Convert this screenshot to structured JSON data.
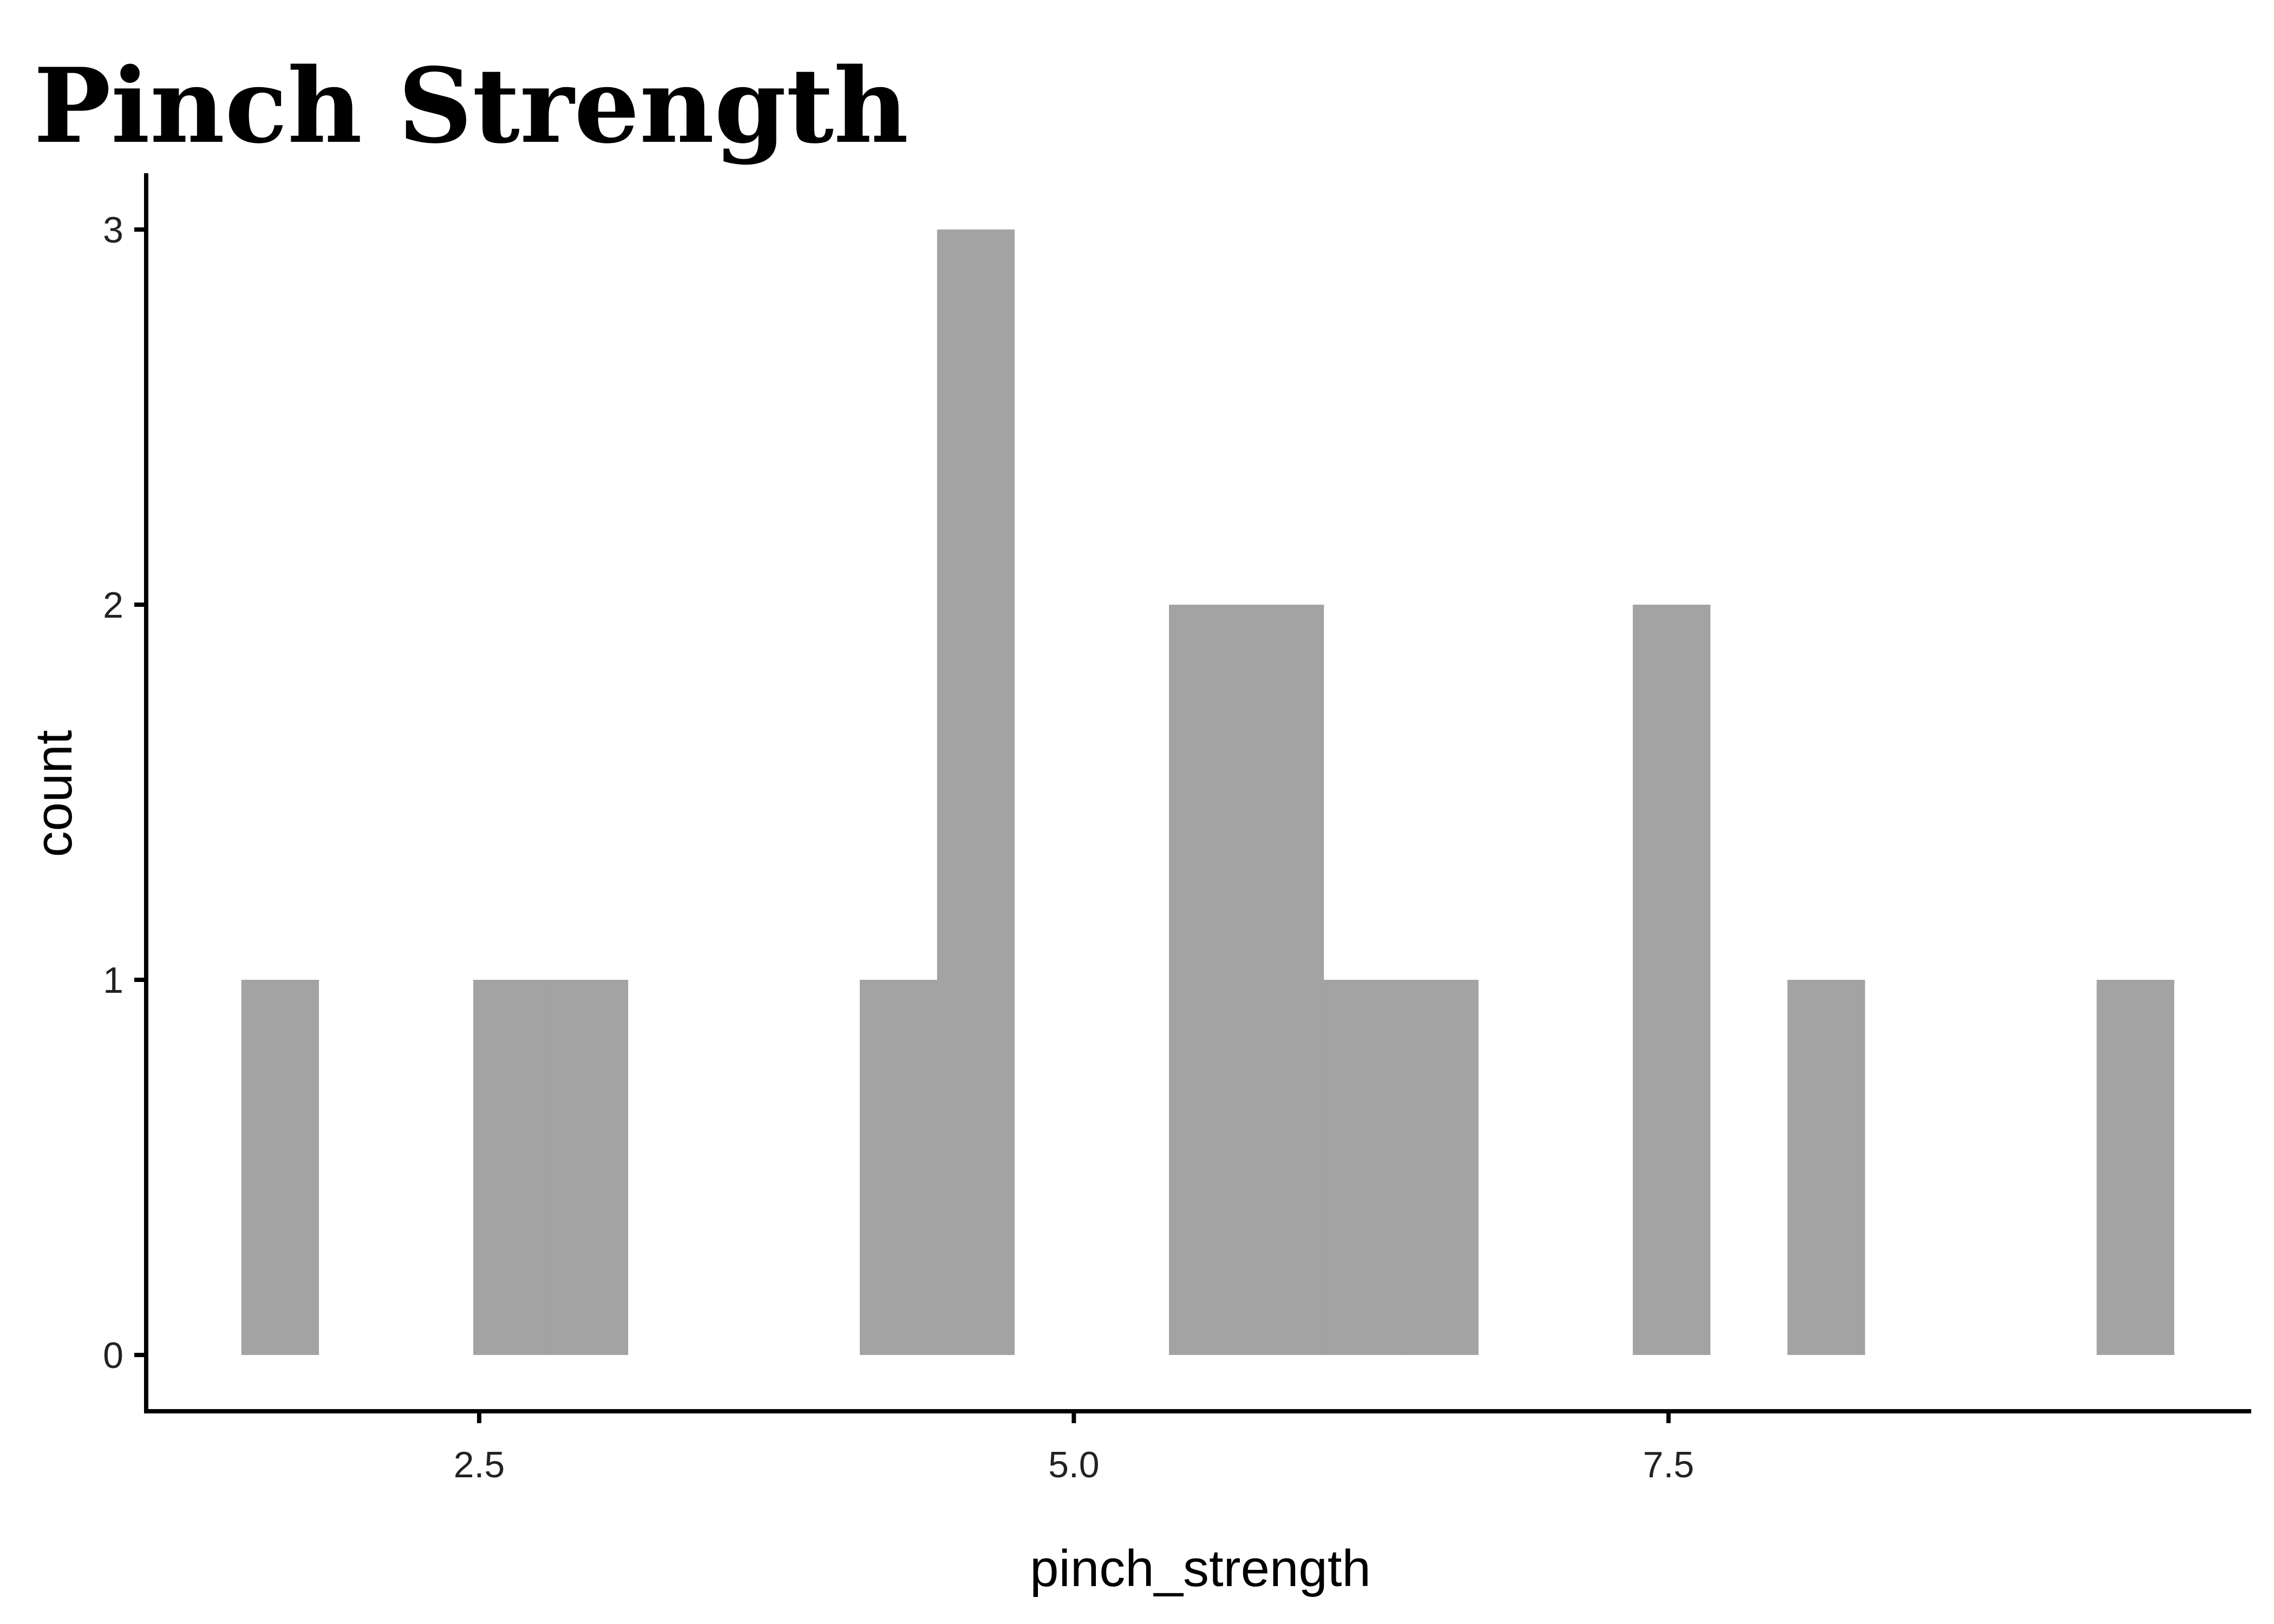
{
  "chart_data": {
    "type": "bar",
    "title": "Pinch Strength",
    "xlabel": "pinch_strength",
    "ylabel": "count",
    "bar_color": "#A3A3A3",
    "axis_color": "#000000",
    "grid": false,
    "xlim": [
      1.1,
      9.95
    ],
    "ylim": [
      -0.15,
      3.15
    ],
    "x_ticks": [
      2.5,
      5.0,
      7.5
    ],
    "x_tick_labels": [
      "2.5",
      "5.0",
      "7.5"
    ],
    "y_ticks": [
      0,
      1,
      2,
      3
    ],
    "y_tick_labels": [
      "0",
      "1",
      "2",
      "3"
    ],
    "bins": [
      {
        "x0": 1.5,
        "x1": 1.825,
        "count": 1
      },
      {
        "x0": 1.825,
        "x1": 2.15,
        "count": 0
      },
      {
        "x0": 2.15,
        "x1": 2.475,
        "count": 0
      },
      {
        "x0": 2.475,
        "x1": 2.8,
        "count": 1
      },
      {
        "x0": 2.8,
        "x1": 3.125,
        "count": 1
      },
      {
        "x0": 3.125,
        "x1": 3.45,
        "count": 0
      },
      {
        "x0": 3.45,
        "x1": 3.775,
        "count": 0
      },
      {
        "x0": 3.775,
        "x1": 4.1,
        "count": 0
      },
      {
        "x0": 4.1,
        "x1": 4.425,
        "count": 1
      },
      {
        "x0": 4.425,
        "x1": 4.75,
        "count": 3
      },
      {
        "x0": 4.75,
        "x1": 5.075,
        "count": 0
      },
      {
        "x0": 5.075,
        "x1": 5.4,
        "count": 0
      },
      {
        "x0": 5.4,
        "x1": 5.725,
        "count": 2
      },
      {
        "x0": 5.725,
        "x1": 6.05,
        "count": 2
      },
      {
        "x0": 6.05,
        "x1": 6.375,
        "count": 1
      },
      {
        "x0": 6.375,
        "x1": 6.7,
        "count": 1
      },
      {
        "x0": 6.7,
        "x1": 7.025,
        "count": 0
      },
      {
        "x0": 7.025,
        "x1": 7.35,
        "count": 0
      },
      {
        "x0": 7.35,
        "x1": 7.675,
        "count": 2
      },
      {
        "x0": 7.675,
        "x1": 8.0,
        "count": 0
      },
      {
        "x0": 8.0,
        "x1": 8.325,
        "count": 1
      },
      {
        "x0": 8.325,
        "x1": 8.65,
        "count": 0
      },
      {
        "x0": 8.65,
        "x1": 8.975,
        "count": 0
      },
      {
        "x0": 8.975,
        "x1": 9.3,
        "count": 0
      },
      {
        "x0": 9.3,
        "x1": 9.625,
        "count": 1
      }
    ]
  }
}
